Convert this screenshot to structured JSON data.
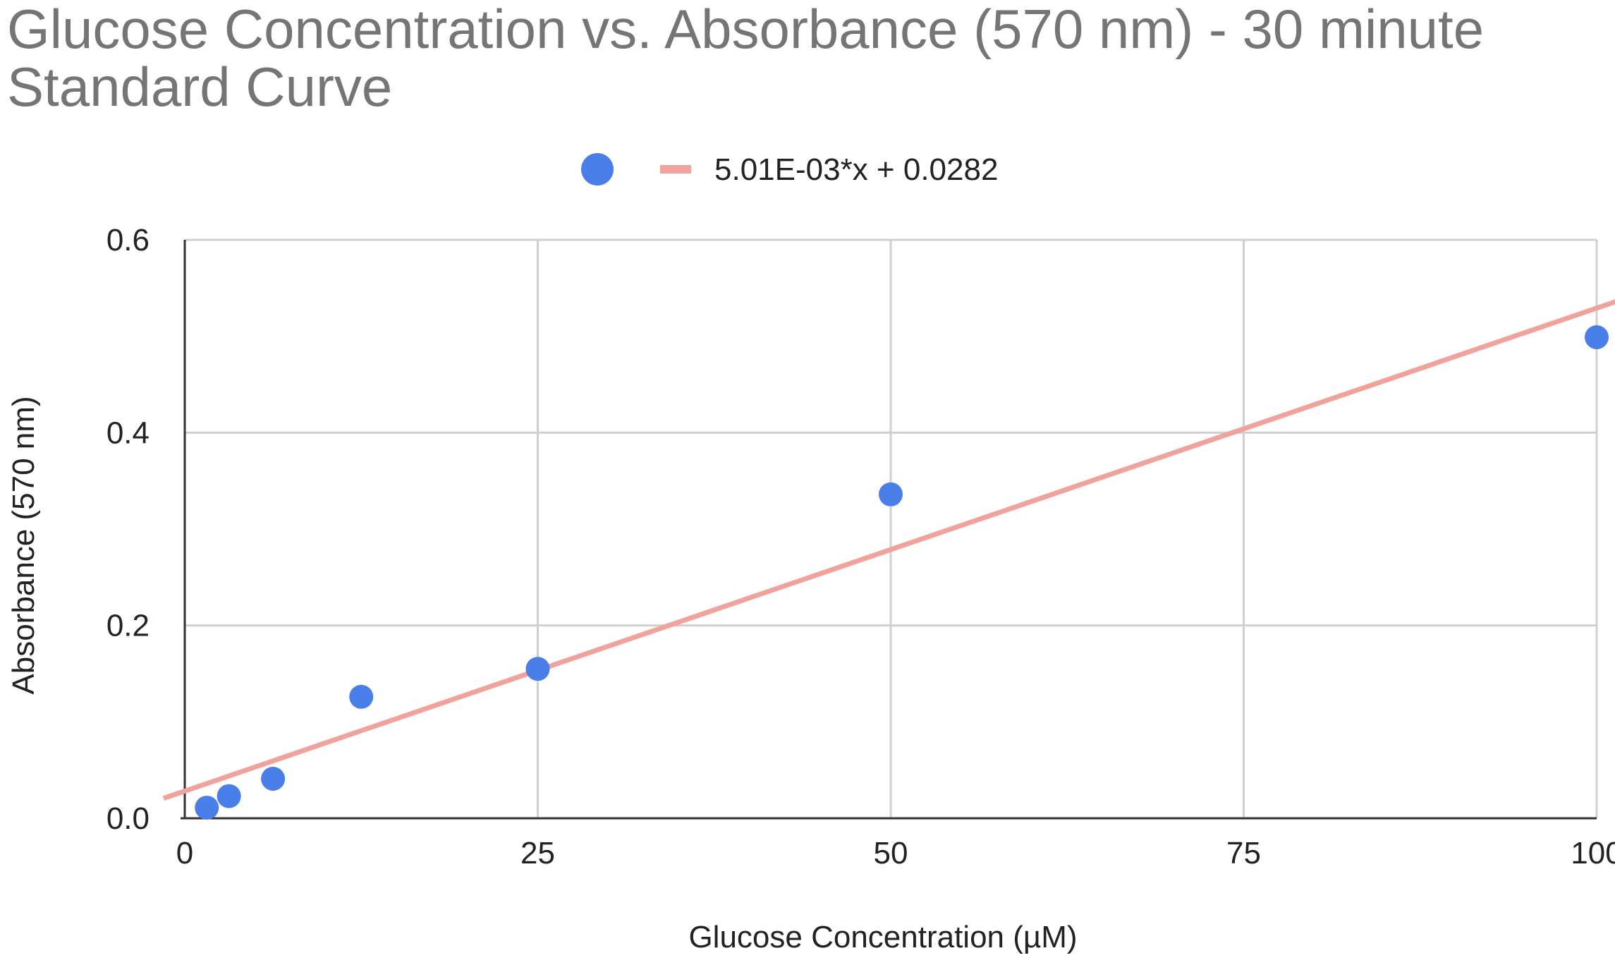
{
  "chart_data": {
    "type": "scatter",
    "title_lines": [
      "Glucose Concentration vs. Absorbance (570 nm) - 30 minute",
      "Standard Curve"
    ],
    "xlabel": "Glucose Concentration (µM)",
    "ylabel": "Absorbance (570 nm)",
    "xlim": [
      0,
      100
    ],
    "ylim": [
      0,
      0.6
    ],
    "x_ticks": [
      {
        "value": 0,
        "label": "0"
      },
      {
        "value": 25,
        "label": "25"
      },
      {
        "value": 50,
        "label": "50"
      },
      {
        "value": 75,
        "label": "75"
      },
      {
        "value": 100,
        "label": "100"
      }
    ],
    "y_ticks": [
      {
        "value": 0,
        "label": "0.0"
      },
      {
        "value": 0.2,
        "label": "0.2"
      },
      {
        "value": 0.4,
        "label": "0.4"
      },
      {
        "value": 0.6,
        "label": "0.6"
      }
    ],
    "grid": true,
    "legend_position": "top",
    "series": [
      {
        "kind": "points",
        "color": "#4a7ee8",
        "points": [
          {
            "x": 1.56,
            "y": 0.011
          },
          {
            "x": 3.13,
            "y": 0.023
          },
          {
            "x": 6.25,
            "y": 0.041
          },
          {
            "x": 12.5,
            "y": 0.126
          },
          {
            "x": 25,
            "y": 0.155
          },
          {
            "x": 50,
            "y": 0.336
          },
          {
            "x": 100,
            "y": 0.499
          }
        ]
      },
      {
        "kind": "trendline",
        "name": "5.01E-03*x + 0.0282",
        "color": "#f0a29d",
        "slope": 0.00501,
        "intercept": 0.0282
      }
    ]
  }
}
